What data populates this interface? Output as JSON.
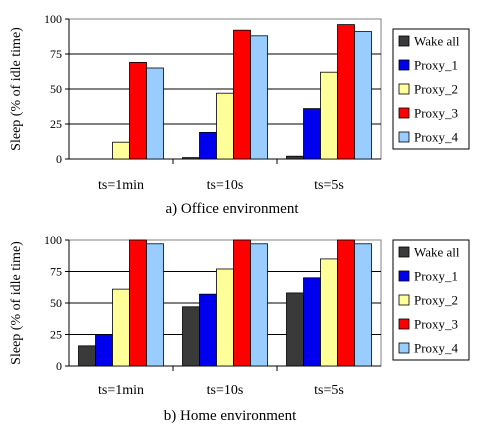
{
  "chart_data": [
    {
      "type": "bar",
      "caption": "a) Office environment",
      "ylabel": "Sleep (% of idle time)",
      "ylim": [
        0,
        100
      ],
      "yticks": [
        "0",
        "25",
        "50",
        "75",
        "100"
      ],
      "categories": [
        "ts=1min",
        "ts=10s",
        "ts=5s"
      ],
      "legend_position": "right",
      "grid": "horizontal",
      "series": [
        {
          "name": "Wake all",
          "color": "#3a3a3a",
          "values": [
            0,
            1,
            2
          ]
        },
        {
          "name": "Proxy_1",
          "color": "#0000ee",
          "values": [
            0,
            19,
            36
          ]
        },
        {
          "name": "Proxy_2",
          "color": "#ffff99",
          "values": [
            12,
            47,
            62
          ]
        },
        {
          "name": "Proxy_3",
          "color": "#ff0000",
          "values": [
            69,
            92,
            96
          ]
        },
        {
          "name": "Proxy_4",
          "color": "#99ccff",
          "values": [
            65,
            88,
            91
          ]
        }
      ]
    },
    {
      "type": "bar",
      "caption": "b) Home environment",
      "ylabel": "Sleep (% of idle time)",
      "ylim": [
        0,
        100
      ],
      "yticks": [
        "0",
        "25",
        "50",
        "75",
        "100"
      ],
      "categories": [
        "ts=1min",
        "ts=10s",
        "ts=5s"
      ],
      "legend_position": "right",
      "grid": "horizontal",
      "series": [
        {
          "name": "Wake all",
          "color": "#3a3a3a",
          "values": [
            16,
            47,
            58
          ]
        },
        {
          "name": "Proxy_1",
          "color": "#0000ee",
          "values": [
            25,
            57,
            70
          ]
        },
        {
          "name": "Proxy_2",
          "color": "#ffff99",
          "values": [
            61,
            77,
            85
          ]
        },
        {
          "name": "Proxy_3",
          "color": "#ff0000",
          "values": [
            100,
            100,
            100
          ]
        },
        {
          "name": "Proxy_4",
          "color": "#99ccff",
          "values": [
            97,
            97,
            97
          ]
        }
      ]
    }
  ]
}
